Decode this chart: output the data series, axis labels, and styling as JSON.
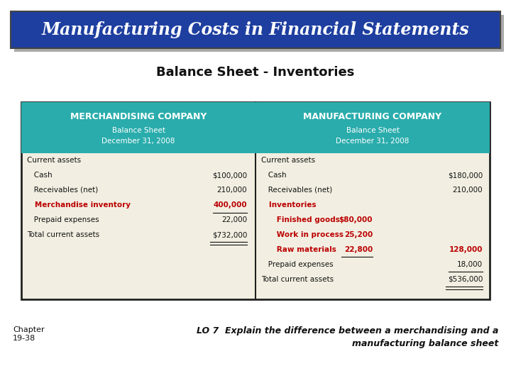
{
  "title": "Manufacturing Costs in Financial Statements",
  "subtitle": "Balance Sheet - Inventories",
  "title_bg": "#1e3fa0",
  "title_color": "#ffffff",
  "header_bg": "#2aacac",
  "header_text_color": "#ffffff",
  "table_bg": "#f2efe2",
  "border_color": "#222222",
  "red_color": "#bb0000",
  "black_color": "#111111",
  "merch_header": "MERCHANDISING COMPANY",
  "merch_sub1": "Balance Sheet",
  "merch_sub2": "December 31, 2008",
  "mfg_header": "MANUFACTURING COMPANY",
  "mfg_sub1": "Balance Sheet",
  "mfg_sub2": "December 31, 2008",
  "merch_rows": [
    [
      "Current assets",
      "",
      "black"
    ],
    [
      "   Cash",
      "$100,000",
      "black"
    ],
    [
      "   Receivables (net)",
      "210,000",
      "black"
    ],
    [
      "   Merchandise inventory",
      "400,000",
      "red"
    ],
    [
      "   Prepaid expenses",
      "22,000",
      "black"
    ],
    [
      "Total current assets",
      "$732,000",
      "black"
    ]
  ],
  "mfg_rows": [
    [
      "Current assets",
      "",
      "",
      "black"
    ],
    [
      "   Cash",
      "",
      "$180,000",
      "black"
    ],
    [
      "   Receivables (net)",
      "",
      "210,000",
      "black"
    ],
    [
      "   Inventories",
      "",
      "",
      "red"
    ],
    [
      "      Finished goods",
      "$80,000",
      "",
      "red"
    ],
    [
      "      Work in process",
      "25,200",
      "",
      "red"
    ],
    [
      "      Raw materials",
      "22,800",
      "128,000",
      "red"
    ],
    [
      "   Prepaid expenses",
      "",
      "18,000",
      "black"
    ],
    [
      "Total current assets",
      "",
      "$536,000",
      "black"
    ]
  ],
  "footer_left": "Chapter\n19-38",
  "footer_right1": "LO 7  Explain the difference between a merchandising and a",
  "footer_right2": "manufacturing balance sheet",
  "bg_color": "#ffffff",
  "shadow_color": "#aaaaaa"
}
